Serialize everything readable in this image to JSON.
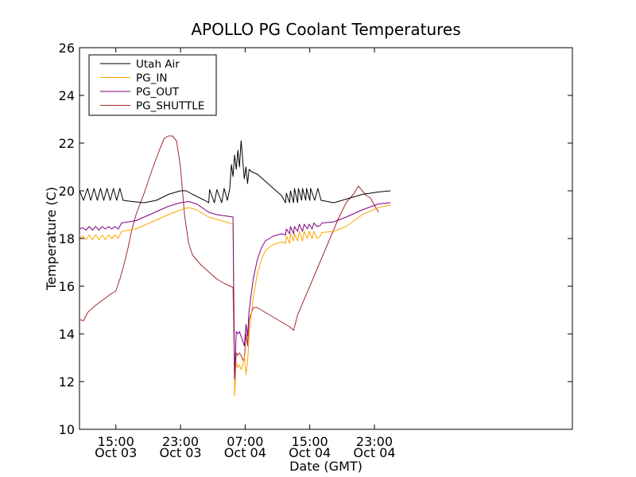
{
  "chart_data": {
    "type": "line",
    "title": "APOLLO PG Coolant Temperatures",
    "xlabel": "Date (GMT)",
    "ylabel": "Temperature (C)",
    "x_unit": "hours since Oct 03 10:30 GMT",
    "xlim": [
      0,
      61
    ],
    "ylim": [
      10,
      26
    ],
    "grid": false,
    "legend_position": "top-left",
    "yticks": [
      10,
      12,
      14,
      16,
      18,
      20,
      22,
      24,
      26
    ],
    "xticks": [
      {
        "x": 4.5,
        "line1": "15:00",
        "line2": "Oct 03"
      },
      {
        "x": 12.5,
        "line1": "23:00",
        "line2": "Oct 03"
      },
      {
        "x": 20.5,
        "line1": "07:00",
        "line2": "Oct 04"
      },
      {
        "x": 28.5,
        "line1": "15:00",
        "line2": "Oct 04"
      },
      {
        "x": 36.5,
        "line1": "23:00",
        "line2": "Oct 04"
      }
    ],
    "series": [
      {
        "name": "Utah Air",
        "color": "#000000",
        "points": [
          [
            0,
            20.0
          ],
          [
            0.5,
            19.6
          ],
          [
            1.0,
            20.1
          ],
          [
            1.4,
            19.6
          ],
          [
            1.8,
            20.1
          ],
          [
            2.2,
            19.6
          ],
          [
            2.6,
            20.1
          ],
          [
            3.0,
            19.6
          ],
          [
            3.4,
            20.1
          ],
          [
            3.8,
            19.6
          ],
          [
            4.2,
            20.1
          ],
          [
            4.6,
            19.6
          ],
          [
            5.0,
            20.1
          ],
          [
            5.4,
            19.6
          ],
          [
            6.5,
            19.55
          ],
          [
            8.0,
            19.5
          ],
          [
            9.5,
            19.6
          ],
          [
            11.0,
            19.85
          ],
          [
            12.5,
            20.0
          ],
          [
            13.2,
            20.0
          ],
          [
            14.0,
            19.85
          ],
          [
            15.5,
            19.6
          ],
          [
            16.0,
            19.5
          ],
          [
            16.1,
            20.05
          ],
          [
            16.7,
            19.5
          ],
          [
            17.0,
            20.05
          ],
          [
            17.6,
            19.5
          ],
          [
            17.9,
            20.1
          ],
          [
            18.3,
            19.6
          ],
          [
            18.6,
            20.1
          ],
          [
            18.8,
            21.1
          ],
          [
            19.0,
            20.6
          ],
          [
            19.2,
            21.5
          ],
          [
            19.4,
            20.9
          ],
          [
            19.6,
            21.7
          ],
          [
            19.8,
            21.0
          ],
          [
            20.0,
            22.1
          ],
          [
            20.2,
            21.3
          ],
          [
            20.4,
            20.5
          ],
          [
            20.6,
            21.0
          ],
          [
            20.8,
            20.3
          ],
          [
            21.0,
            20.9
          ],
          [
            21.3,
            20.8
          ],
          [
            22.0,
            20.7
          ],
          [
            23.0,
            20.4
          ],
          [
            24.0,
            20.1
          ],
          [
            25.0,
            19.8
          ],
          [
            25.5,
            19.5
          ],
          [
            25.6,
            19.9
          ],
          [
            26.0,
            19.5
          ],
          [
            26.1,
            20.0
          ],
          [
            26.5,
            19.5
          ],
          [
            26.6,
            20.1
          ],
          [
            27.0,
            19.5
          ],
          [
            27.1,
            20.1
          ],
          [
            27.5,
            19.6
          ],
          [
            27.6,
            20.1
          ],
          [
            28.0,
            19.6
          ],
          [
            28.1,
            20.1
          ],
          [
            28.5,
            19.6
          ],
          [
            28.6,
            20.1
          ],
          [
            29.1,
            19.6
          ],
          [
            29.5,
            20.1
          ],
          [
            29.9,
            19.6
          ],
          [
            31.5,
            19.5
          ],
          [
            33.0,
            19.65
          ],
          [
            35.0,
            19.85
          ],
          [
            37.0,
            19.95
          ],
          [
            38.5,
            20.0
          ]
        ]
      },
      {
        "name": "PG_IN",
        "color": "#ffa500",
        "points": [
          [
            0,
            18.0
          ],
          [
            0.4,
            18.1
          ],
          [
            0.8,
            17.95
          ],
          [
            1.2,
            18.15
          ],
          [
            1.6,
            17.95
          ],
          [
            2.0,
            18.15
          ],
          [
            2.4,
            17.95
          ],
          [
            2.8,
            18.15
          ],
          [
            3.2,
            17.95
          ],
          [
            3.6,
            18.15
          ],
          [
            4.0,
            18.0
          ],
          [
            4.4,
            18.15
          ],
          [
            4.8,
            18.0
          ],
          [
            5.2,
            18.3
          ],
          [
            7.0,
            18.4
          ],
          [
            9.0,
            18.7
          ],
          [
            11.0,
            19.0
          ],
          [
            12.5,
            19.2
          ],
          [
            13.5,
            19.3
          ],
          [
            14.5,
            19.2
          ],
          [
            16.0,
            18.9
          ],
          [
            17.0,
            18.8
          ],
          [
            18.0,
            18.7
          ],
          [
            19.0,
            18.6
          ],
          [
            19.2,
            11.4
          ],
          [
            19.4,
            12.8
          ],
          [
            19.6,
            12.6
          ],
          [
            19.8,
            12.7
          ],
          [
            20.0,
            12.5
          ],
          [
            20.2,
            12.7
          ],
          [
            20.4,
            13.1
          ],
          [
            20.6,
            12.3
          ],
          [
            20.8,
            12.8
          ],
          [
            21.0,
            14.0
          ],
          [
            21.5,
            15.5
          ],
          [
            22.0,
            16.5
          ],
          [
            22.5,
            17.1
          ],
          [
            23.0,
            17.5
          ],
          [
            24.0,
            17.75
          ],
          [
            25.0,
            17.85
          ],
          [
            25.5,
            17.8
          ],
          [
            25.6,
            18.1
          ],
          [
            26.0,
            17.8
          ],
          [
            26.1,
            18.2
          ],
          [
            26.5,
            17.9
          ],
          [
            26.6,
            18.2
          ],
          [
            27.0,
            17.9
          ],
          [
            27.2,
            18.3
          ],
          [
            27.6,
            17.9
          ],
          [
            27.8,
            18.3
          ],
          [
            28.2,
            18.0
          ],
          [
            28.4,
            18.3
          ],
          [
            28.8,
            18.0
          ],
          [
            29.0,
            18.3
          ],
          [
            29.4,
            18.0
          ],
          [
            29.8,
            18.1
          ],
          [
            30.0,
            18.25
          ],
          [
            31.5,
            18.3
          ],
          [
            33.0,
            18.5
          ],
          [
            35.0,
            19.0
          ],
          [
            37.0,
            19.3
          ],
          [
            38.5,
            19.4
          ]
        ]
      },
      {
        "name": "PG_OUT",
        "color": "#800080",
        "points": [
          [
            0,
            18.4
          ],
          [
            0.4,
            18.45
          ],
          [
            0.8,
            18.35
          ],
          [
            1.2,
            18.5
          ],
          [
            1.6,
            18.35
          ],
          [
            2.0,
            18.5
          ],
          [
            2.4,
            18.35
          ],
          [
            2.8,
            18.5
          ],
          [
            3.2,
            18.4
          ],
          [
            3.6,
            18.5
          ],
          [
            4.0,
            18.4
          ],
          [
            4.4,
            18.5
          ],
          [
            4.8,
            18.4
          ],
          [
            5.2,
            18.65
          ],
          [
            7.0,
            18.75
          ],
          [
            9.0,
            19.05
          ],
          [
            11.0,
            19.35
          ],
          [
            12.5,
            19.5
          ],
          [
            13.5,
            19.55
          ],
          [
            14.5,
            19.45
          ],
          [
            16.0,
            19.1
          ],
          [
            17.0,
            19.0
          ],
          [
            18.0,
            18.95
          ],
          [
            19.0,
            18.9
          ],
          [
            19.2,
            12.1
          ],
          [
            19.4,
            14.1
          ],
          [
            19.6,
            14.0
          ],
          [
            19.8,
            14.1
          ],
          [
            20.0,
            13.9
          ],
          [
            20.2,
            13.7
          ],
          [
            20.4,
            13.5
          ],
          [
            20.6,
            14.4
          ],
          [
            20.8,
            13.9
          ],
          [
            21.0,
            15.0
          ],
          [
            21.5,
            16.3
          ],
          [
            22.0,
            17.1
          ],
          [
            22.5,
            17.6
          ],
          [
            23.0,
            17.9
          ],
          [
            24.0,
            18.1
          ],
          [
            25.0,
            18.2
          ],
          [
            25.5,
            18.15
          ],
          [
            25.6,
            18.4
          ],
          [
            26.0,
            18.2
          ],
          [
            26.1,
            18.5
          ],
          [
            26.5,
            18.2
          ],
          [
            26.6,
            18.5
          ],
          [
            27.0,
            18.3
          ],
          [
            27.2,
            18.6
          ],
          [
            27.6,
            18.3
          ],
          [
            27.8,
            18.6
          ],
          [
            28.2,
            18.4
          ],
          [
            28.4,
            18.6
          ],
          [
            28.8,
            18.4
          ],
          [
            29.0,
            18.65
          ],
          [
            29.4,
            18.5
          ],
          [
            29.8,
            18.55
          ],
          [
            30.0,
            18.65
          ],
          [
            31.5,
            18.7
          ],
          [
            33.0,
            18.9
          ],
          [
            35.0,
            19.2
          ],
          [
            37.0,
            19.45
          ],
          [
            38.5,
            19.5
          ]
        ]
      },
      {
        "name": "PG_SHUTTLE",
        "color": "#a52a2a",
        "points": [
          [
            0,
            14.6
          ],
          [
            0.5,
            14.55
          ],
          [
            1.0,
            14.9
          ],
          [
            2.0,
            15.2
          ],
          [
            3.0,
            15.45
          ],
          [
            4.0,
            15.7
          ],
          [
            4.5,
            15.8
          ],
          [
            5.0,
            16.3
          ],
          [
            5.5,
            16.9
          ],
          [
            6.0,
            17.6
          ],
          [
            6.5,
            18.4
          ],
          [
            7.0,
            19.0
          ],
          [
            8.0,
            19.9
          ],
          [
            9.0,
            20.9
          ],
          [
            10.0,
            21.8
          ],
          [
            10.5,
            22.2
          ],
          [
            11.0,
            22.3
          ],
          [
            11.5,
            22.3
          ],
          [
            12.0,
            22.1
          ],
          [
            12.5,
            21.0
          ],
          [
            13.0,
            19.0
          ],
          [
            13.5,
            17.8
          ],
          [
            14.0,
            17.3
          ],
          [
            15.0,
            16.9
          ],
          [
            16.0,
            16.6
          ],
          [
            17.0,
            16.3
          ],
          [
            18.0,
            16.1
          ],
          [
            19.0,
            15.95
          ],
          [
            19.2,
            12.2
          ],
          [
            19.4,
            13.2
          ],
          [
            19.6,
            13.1
          ],
          [
            19.8,
            13.2
          ],
          [
            20.0,
            13.1
          ],
          [
            20.2,
            12.9
          ],
          [
            20.4,
            12.9
          ],
          [
            20.6,
            14.0
          ],
          [
            20.8,
            13.5
          ],
          [
            21.0,
            14.6
          ],
          [
            21.5,
            15.1
          ],
          [
            22.0,
            15.1
          ],
          [
            22.5,
            15.0
          ],
          [
            23.5,
            14.8
          ],
          [
            24.5,
            14.6
          ],
          [
            25.5,
            14.4
          ],
          [
            26.0,
            14.3
          ],
          [
            26.5,
            14.15
          ],
          [
            27.0,
            14.8
          ],
          [
            28.0,
            15.6
          ],
          [
            29.0,
            16.4
          ],
          [
            30.0,
            17.2
          ],
          [
            31.0,
            18.0
          ],
          [
            32.0,
            18.8
          ],
          [
            33.0,
            19.5
          ],
          [
            34.0,
            19.9
          ],
          [
            34.5,
            20.2
          ],
          [
            35.0,
            20.0
          ],
          [
            35.5,
            19.8
          ],
          [
            36.0,
            19.7
          ],
          [
            36.5,
            19.4
          ],
          [
            37.0,
            19.1
          ]
        ]
      }
    ]
  }
}
